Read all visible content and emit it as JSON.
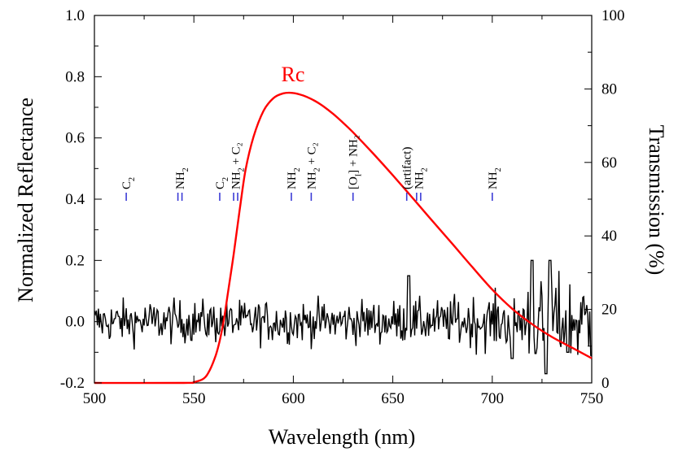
{
  "colors": {
    "transmission": "#ff0000",
    "reflectance": "#000000",
    "markers": "#3b3bd6"
  },
  "chart_data": {
    "type": "line",
    "title": "",
    "xlabel": "Wavelength (nm)",
    "ylabel": "Normalized Reflectance",
    "y2label": "Transmission (%)",
    "xlim": [
      500,
      750
    ],
    "ylim": [
      -0.2,
      1.0
    ],
    "y2lim": [
      0,
      100
    ],
    "xticks": [
      "500",
      "550",
      "600",
      "650",
      "700",
      "750"
    ],
    "yticks": [
      "-0.2",
      "0.0",
      "0.2",
      "0.4",
      "0.6",
      "0.8",
      "1.0"
    ],
    "y2ticks": [
      "0",
      "20",
      "40",
      "60",
      "80",
      "100"
    ],
    "series": [
      {
        "name": "Rc",
        "label": "Rc",
        "axis": "right",
        "x": [
          500,
          545,
          550,
          555,
          558,
          561,
          563,
          565,
          567,
          570,
          573,
          576,
          580,
          585,
          590,
          595,
          600,
          605,
          610,
          615,
          620,
          625,
          630,
          640,
          650,
          660,
          670,
          680,
          690,
          700,
          710,
          720,
          730,
          740,
          750
        ],
        "y": [
          0,
          0,
          0.2,
          1.2,
          3.5,
          7.5,
          11.5,
          17,
          24,
          35,
          47,
          58,
          67,
          74,
          77.5,
          78.8,
          78.9,
          78.2,
          77,
          75.3,
          73.2,
          70.8,
          68.2,
          62.5,
          56.5,
          50.3,
          44,
          37.8,
          31.5,
          25.4,
          20.2,
          16,
          12.5,
          9.6,
          6.7
        ]
      },
      {
        "name": "Normalized Reflectance",
        "axis": "left",
        "note": "noisy spectrum fluctuating about 0.0, amplitude ~0.05-0.1, larger swings beyond 720 nm",
        "x_start": 500,
        "x_step": 0.5,
        "noise_sigma": 0.035,
        "spikes": [
          {
            "x": 658,
            "y": 0.15
          },
          {
            "x": 720,
            "y": 0.2
          },
          {
            "x": 729,
            "y": 0.2
          },
          {
            "x": 727,
            "y": -0.17
          },
          {
            "x": 710,
            "y": -0.12
          },
          {
            "x": 738,
            "y": -0.1
          }
        ]
      }
    ],
    "annotations": [
      {
        "x": 516,
        "ticks": 1,
        "label": "C",
        "sub": "2",
        "suffix": ""
      },
      {
        "x": 543,
        "ticks": 2,
        "label": "NH",
        "sub": "2",
        "suffix": ""
      },
      {
        "x": 563,
        "ticks": 1,
        "label": "C",
        "sub": "2",
        "suffix": ""
      },
      {
        "x": 571,
        "ticks": 2,
        "label": "NH",
        "sub": "2",
        "suffix": " + C₂"
      },
      {
        "x": 599,
        "ticks": 1,
        "label": "NH",
        "sub": "2",
        "suffix": ""
      },
      {
        "x": 609,
        "ticks": 1,
        "label": "NH",
        "sub": "2",
        "suffix": " + C₂"
      },
      {
        "x": 630,
        "ticks": 1,
        "label": "[O",
        "sub": "I",
        "suffix": "] + NH₂"
      },
      {
        "x": 657,
        "ticks": 1,
        "label": "(artifact)",
        "sub": "",
        "suffix": ""
      },
      {
        "x": 663,
        "ticks": 2,
        "label": "NH",
        "sub": "2",
        "suffix": ""
      },
      {
        "x": 700,
        "ticks": 1,
        "label": "NH",
        "sub": "2",
        "suffix": ""
      }
    ]
  }
}
